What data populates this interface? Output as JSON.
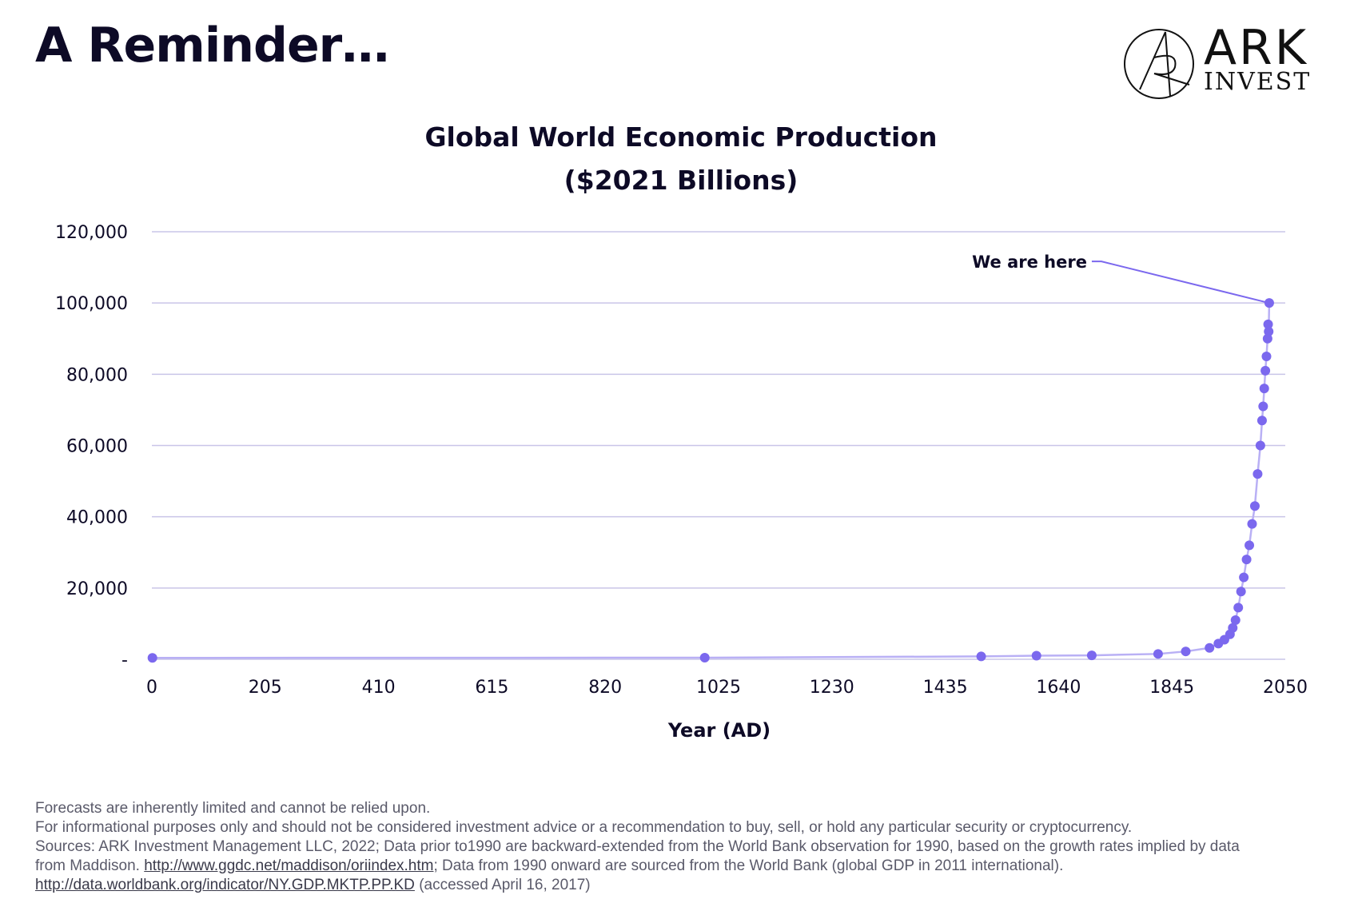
{
  "page": {
    "title": "A Reminder…"
  },
  "logo": {
    "word1": "ARK",
    "word2": "INVEST"
  },
  "chart_data": {
    "type": "scatter",
    "title": "Global World Economic Production",
    "subtitle": "($2021 Billions)",
    "xlabel": "Year (AD)",
    "ylabel": "",
    "xlim": [
      0,
      2050
    ],
    "ylim": [
      0,
      120000
    ],
    "xticks": [
      0,
      205,
      410,
      615,
      820,
      1025,
      1230,
      1435,
      1640,
      1845,
      2050
    ],
    "xtick_labels": [
      "0",
      "205",
      "410",
      "615",
      "820",
      "1025",
      "1230",
      "1435",
      "1640",
      "1845",
      "2050"
    ],
    "yticks": [
      0,
      20000,
      40000,
      60000,
      80000,
      100000,
      120000
    ],
    "ytick_labels": [
      "-",
      "20,000",
      "40,000",
      "60,000",
      "80,000",
      "100,000",
      "120,000"
    ],
    "grid": true,
    "annotation": {
      "text": "We are here",
      "x": 2021,
      "y": 100000
    },
    "series": [
      {
        "x": [
          1,
          1000,
          1500,
          1600,
          1700,
          1820,
          1870,
          1913,
          1929,
          1940,
          1950,
          1955,
          1960,
          1965,
          1970,
          1975,
          1980,
          1985,
          1990,
          1995,
          2000,
          2005,
          2008,
          2010,
          2012,
          2014,
          2016,
          2018,
          2019,
          2020,
          2021
        ],
        "y": [
          400,
          450,
          800,
          1000,
          1100,
          1500,
          2200,
          3200,
          4400,
          5500,
          7000,
          8800,
          11000,
          14500,
          19000,
          23000,
          28000,
          32000,
          38000,
          43000,
          52000,
          60000,
          67000,
          71000,
          76000,
          81000,
          85000,
          90000,
          94000,
          92000,
          100000
        ]
      }
    ],
    "point_color": "#7b68ee",
    "line_color": "#b9b0f5"
  },
  "footer": {
    "line1": "Forecasts are inherently limited and cannot be relied upon.",
    "line2": "For informational purposes only and should not be considered investment advice or a recommendation to buy, sell, or hold any particular security or cryptocurrency.",
    "line3": "Sources: ARK Investment Management LLC, 2022; Data prior to1990 are backward-extended from the World Bank observation for 1990, based on the growth rates implied by data",
    "line4_prefix": "from Maddison. ",
    "line4_link": "http://www.ggdc.net/maddison/oriindex.htm",
    "line4_suffix": "; Data from 1990 onward are sourced from the World Bank (global GDP in 2011 international).",
    "line5_link": "http://data.worldbank.org/indicator/NY.GDP.MKTP.PP.KD",
    "line5_suffix": " (accessed April 16, 2017)"
  }
}
